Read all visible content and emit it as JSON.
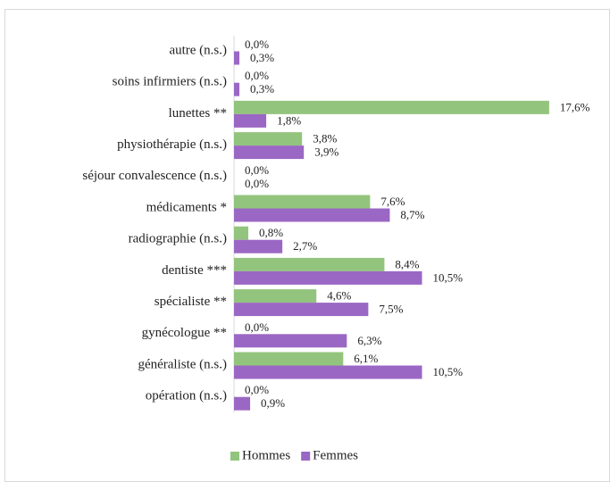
{
  "chart_data": {
    "type": "hbar",
    "categories": [
      "autre (n.s.)",
      "soins infirmiers (n.s.)",
      "lunettes **",
      "physiothérapie (n.s.)",
      "séjour convalescence (n.s.)",
      "médicaments *",
      "radiographie (n.s.)",
      "dentiste ***",
      "spécialiste **",
      "gynécologue **",
      "généraliste (n.s.)",
      "opération (n.s.)"
    ],
    "series": [
      {
        "name": "Hommes",
        "color": "#93c47d",
        "values": [
          0,
          0,
          17.6,
          3.8,
          0,
          7.6,
          0.8,
          8.4,
          4.6,
          0,
          6.1,
          0
        ],
        "value_labels": [
          "0,0%",
          "0,0%",
          "17,6%",
          "3,8%",
          "0,0%",
          "7,6%",
          "0,8%",
          "8,4%",
          "4,6%",
          "0,0%",
          "6,1%",
          "0,0%"
        ]
      },
      {
        "name": "Femmes",
        "color": "#9b67c4",
        "values": [
          0.3,
          0.3,
          1.8,
          3.9,
          0,
          8.7,
          2.7,
          10.5,
          7.5,
          6.3,
          10.5,
          0.9
        ],
        "value_labels": [
          "0,3%",
          "0,3%",
          "1,8%",
          "3,9%",
          "0,0%",
          "8,7%",
          "2,7%",
          "10,5%",
          "7,5%",
          "6,3%",
          "10,5%",
          "0,9%"
        ]
      }
    ],
    "xlim": [
      0,
      20
    ],
    "legend": "bottom"
  }
}
